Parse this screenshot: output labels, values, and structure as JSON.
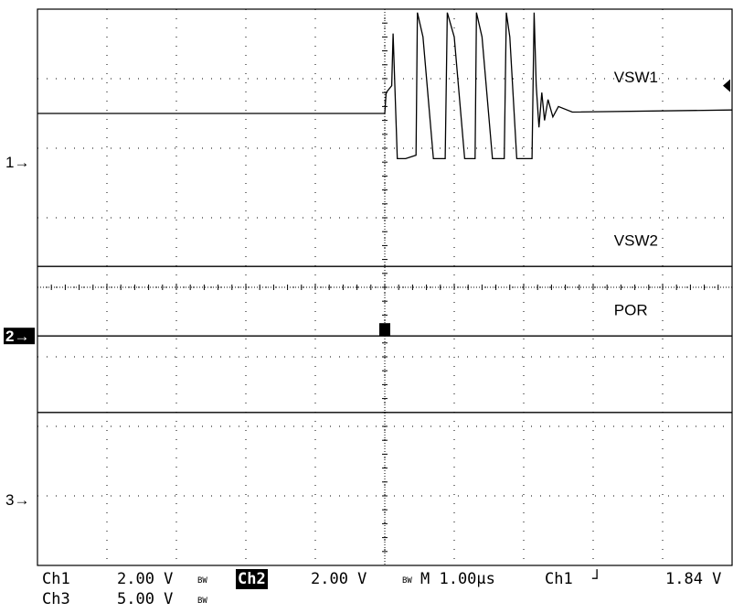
{
  "chart_data": {
    "type": "line",
    "title": "",
    "xlabel": "",
    "ylabel": "",
    "grid": true,
    "x_divisions": 10,
    "y_divisions": 8,
    "xlim": [
      0,
      10
    ],
    "ylim": [
      0,
      8
    ],
    "time_per_div": "1.00µs",
    "trace_labels": [
      "VSW1",
      "VSW2",
      "POR"
    ],
    "channel_markers": [
      {
        "label": "1→",
        "level": 5.8,
        "highlighted": false
      },
      {
        "label": "2→",
        "level": 3.3,
        "highlighted": true
      },
      {
        "label": "3→",
        "level": 0.95,
        "highlighted": false
      }
    ],
    "series": [
      {
        "name": "VSW1",
        "x": [
          0,
          5.0,
          5.02,
          5.1,
          5.12,
          5.18,
          5.3,
          5.45,
          5.47,
          5.55,
          5.7,
          5.87,
          5.9,
          6.0,
          6.15,
          6.3,
          6.32,
          6.4,
          6.55,
          6.72,
          6.75,
          6.8,
          6.9,
          7.12,
          7.15,
          7.18,
          7.22,
          7.26,
          7.3,
          7.35,
          7.42,
          7.5,
          7.7,
          10
        ],
        "y": [
          6.5,
          6.5,
          6.8,
          6.9,
          7.65,
          5.85,
          5.85,
          5.9,
          7.95,
          7.6,
          5.85,
          5.85,
          7.95,
          7.6,
          5.85,
          5.85,
          7.95,
          7.6,
          5.85,
          5.85,
          7.95,
          7.6,
          5.85,
          5.85,
          7.95,
          6.9,
          6.3,
          6.8,
          6.4,
          6.7,
          6.45,
          6.6,
          6.52,
          6.55
        ]
      },
      {
        "name": "VSW2",
        "x": [
          0,
          10
        ],
        "y": [
          4.3,
          4.3
        ]
      },
      {
        "name": "POR",
        "x": [
          0,
          10
        ],
        "y": [
          3.3,
          3.3
        ]
      },
      {
        "name": "Ch3",
        "x": [
          0,
          10
        ],
        "y": [
          2.2,
          2.2
        ]
      }
    ]
  },
  "status": {
    "row1": {
      "ch1_label": "Ch1",
      "ch1_scale": "2.00 V",
      "ch1_bw": "BW",
      "ch2_label": "Ch2",
      "ch2_scale": "2.00 V",
      "ch2_bw": "BW",
      "timebase": "M 1.00µs",
      "trigger_source": "Ch1",
      "trigger_edge": "┘",
      "trigger_level": "1.84 V"
    },
    "row2": {
      "ch3_label": "Ch3",
      "ch3_scale": "5.00 V",
      "ch3_bw": "BW"
    }
  }
}
